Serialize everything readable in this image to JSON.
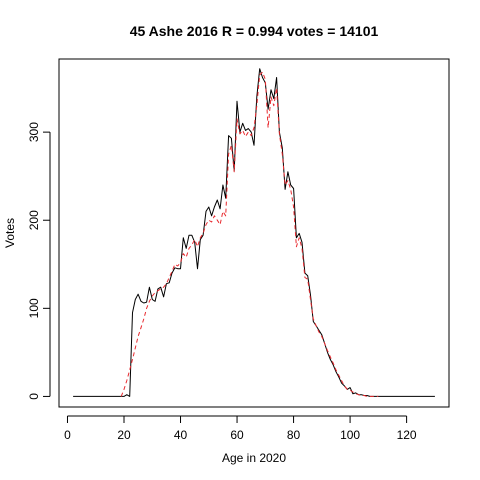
{
  "chart_data": {
    "type": "line",
    "title": "45 Ashe 2016 R = 0.994 votes = 14101",
    "xlabel": "Age in 2020",
    "ylabel": "Votes",
    "xlim": [
      -3,
      135
    ],
    "ylim": [
      -12,
      383
    ],
    "x_ticks": [
      0,
      20,
      40,
      60,
      80,
      100,
      120
    ],
    "y_ticks": [
      0,
      100,
      200,
      300
    ],
    "grid": false,
    "legend": "none",
    "series": [
      {
        "style": "solid",
        "color": "#000000",
        "points": [
          [
            2,
            0
          ],
          [
            20,
            0
          ],
          [
            21,
            2
          ],
          [
            22,
            0
          ],
          [
            23,
            95
          ],
          [
            24,
            110
          ],
          [
            25,
            116
          ],
          [
            26,
            108
          ],
          [
            27,
            106
          ],
          [
            28,
            107
          ],
          [
            29,
            124
          ],
          [
            30,
            110
          ],
          [
            31,
            108
          ],
          [
            32,
            122
          ],
          [
            33,
            124
          ],
          [
            34,
            113
          ],
          [
            35,
            128
          ],
          [
            36,
            129
          ],
          [
            37,
            140
          ],
          [
            38,
            146
          ],
          [
            39,
            145
          ],
          [
            40,
            145
          ],
          [
            41,
            180
          ],
          [
            42,
            168
          ],
          [
            43,
            183
          ],
          [
            44,
            183
          ],
          [
            45,
            175
          ],
          [
            46,
            145
          ],
          [
            47,
            178
          ],
          [
            48,
            183
          ],
          [
            49,
            210
          ],
          [
            50,
            215
          ],
          [
            51,
            205
          ],
          [
            52,
            215
          ],
          [
            53,
            223
          ],
          [
            54,
            213
          ],
          [
            55,
            240
          ],
          [
            56,
            225
          ],
          [
            57,
            296
          ],
          [
            58,
            293
          ],
          [
            59,
            256
          ],
          [
            60,
            335
          ],
          [
            61,
            300
          ],
          [
            62,
            310
          ],
          [
            63,
            302
          ],
          [
            64,
            304
          ],
          [
            65,
            300
          ],
          [
            66,
            285
          ],
          [
            67,
            340
          ],
          [
            68,
            372
          ],
          [
            69,
            362
          ],
          [
            70,
            356
          ],
          [
            71,
            326
          ],
          [
            72,
            348
          ],
          [
            73,
            338
          ],
          [
            74,
            362
          ],
          [
            75,
            300
          ],
          [
            76,
            282
          ],
          [
            77,
            235
          ],
          [
            78,
            255
          ],
          [
            79,
            240
          ],
          [
            80,
            236
          ],
          [
            81,
            180
          ],
          [
            82,
            185
          ],
          [
            83,
            175
          ],
          [
            84,
            140
          ],
          [
            85,
            137
          ],
          [
            86,
            115
          ],
          [
            87,
            85
          ],
          [
            88,
            80
          ],
          [
            89,
            75
          ],
          [
            90,
            70
          ],
          [
            91,
            60
          ],
          [
            92,
            50
          ],
          [
            93,
            42
          ],
          [
            94,
            36
          ],
          [
            95,
            28
          ],
          [
            96,
            22
          ],
          [
            97,
            15
          ],
          [
            98,
            12
          ],
          [
            99,
            8
          ],
          [
            100,
            10
          ],
          [
            101,
            3
          ],
          [
            102,
            4
          ],
          [
            103,
            2
          ],
          [
            104,
            2
          ],
          [
            105,
            1
          ],
          [
            106,
            1
          ],
          [
            107,
            0
          ],
          [
            108,
            0
          ],
          [
            110,
            0
          ],
          [
            130,
            0
          ]
        ]
      },
      {
        "style": "dashed",
        "color": "#e8292e",
        "points": [
          [
            19,
            0
          ],
          [
            20,
            8
          ],
          [
            21,
            18
          ],
          [
            22,
            30
          ],
          [
            23,
            42
          ],
          [
            24,
            55
          ],
          [
            25,
            68
          ],
          [
            26,
            78
          ],
          [
            27,
            88
          ],
          [
            28,
            100
          ],
          [
            29,
            108
          ],
          [
            30,
            114
          ],
          [
            31,
            118
          ],
          [
            32,
            120
          ],
          [
            33,
            122
          ],
          [
            34,
            124
          ],
          [
            35,
            128
          ],
          [
            36,
            135
          ],
          [
            37,
            142
          ],
          [
            38,
            150
          ],
          [
            39,
            148
          ],
          [
            40,
            152
          ],
          [
            41,
            162
          ],
          [
            42,
            158
          ],
          [
            43,
            168
          ],
          [
            44,
            172
          ],
          [
            45,
            178
          ],
          [
            46,
            170
          ],
          [
            47,
            180
          ],
          [
            48,
            185
          ],
          [
            49,
            195
          ],
          [
            50,
            200
          ],
          [
            51,
            198
          ],
          [
            52,
            205
          ],
          [
            53,
            200
          ],
          [
            54,
            195
          ],
          [
            55,
            210
          ],
          [
            56,
            205
          ],
          [
            57,
            275
          ],
          [
            58,
            285
          ],
          [
            59,
            255
          ],
          [
            60,
            315
          ],
          [
            61,
            298
          ],
          [
            62,
            302
          ],
          [
            63,
            295
          ],
          [
            64,
            300
          ],
          [
            65,
            296
          ],
          [
            66,
            305
          ],
          [
            67,
            330
          ],
          [
            68,
            365
          ],
          [
            69,
            368
          ],
          [
            70,
            360
          ],
          [
            71,
            305
          ],
          [
            72,
            340
          ],
          [
            73,
            330
          ],
          [
            74,
            350
          ],
          [
            75,
            298
          ],
          [
            76,
            275
          ],
          [
            77,
            240
          ],
          [
            78,
            245
          ],
          [
            79,
            235
          ],
          [
            80,
            215
          ],
          [
            81,
            170
          ],
          [
            82,
            180
          ],
          [
            83,
            168
          ],
          [
            84,
            135
          ],
          [
            85,
            133
          ],
          [
            86,
            110
          ],
          [
            87,
            88
          ],
          [
            88,
            80
          ],
          [
            89,
            73
          ],
          [
            90,
            68
          ],
          [
            91,
            60
          ],
          [
            92,
            52
          ],
          [
            93,
            45
          ],
          [
            94,
            38
          ],
          [
            95,
            30
          ],
          [
            96,
            24
          ],
          [
            97,
            18
          ],
          [
            98,
            12
          ],
          [
            99,
            8
          ],
          [
            100,
            7
          ],
          [
            101,
            5
          ],
          [
            102,
            3
          ],
          [
            103,
            2
          ],
          [
            104,
            1
          ],
          [
            105,
            1
          ],
          [
            106,
            0
          ],
          [
            108,
            0
          ],
          [
            110,
            0
          ]
        ]
      }
    ]
  }
}
